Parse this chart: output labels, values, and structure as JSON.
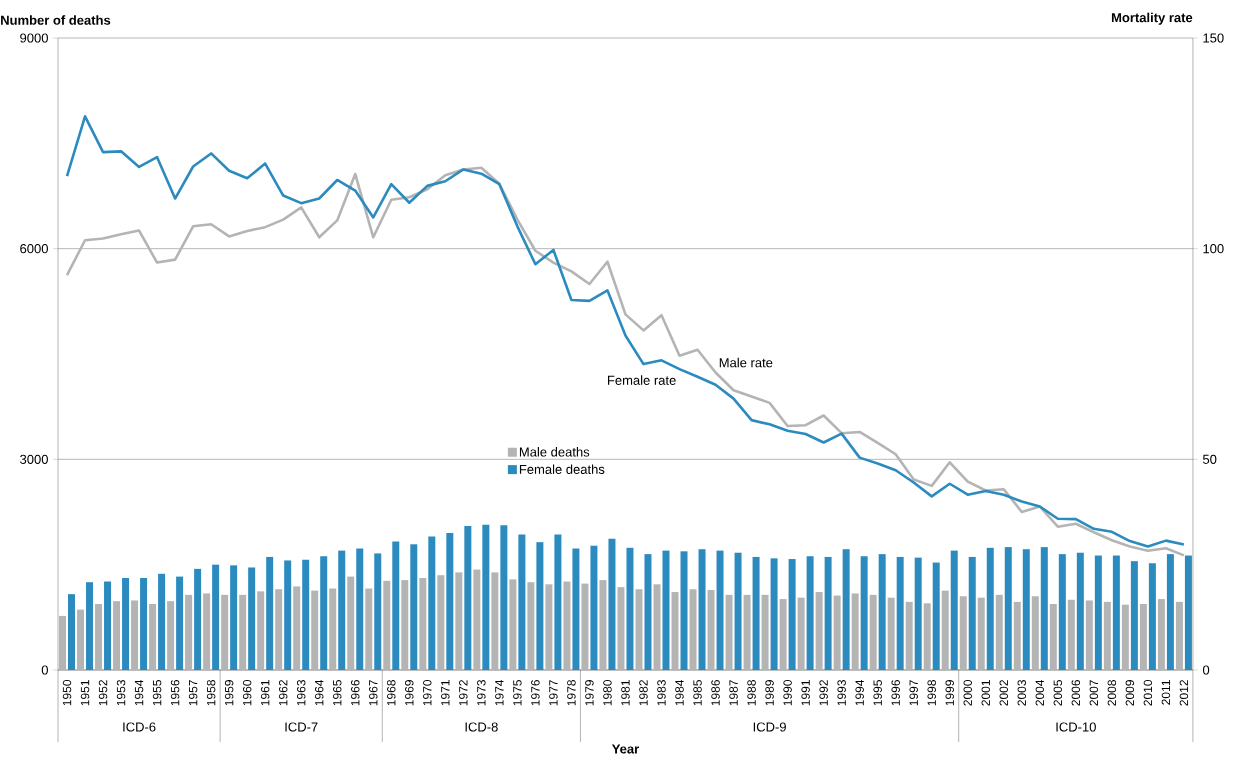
{
  "chart_data": {
    "type": "bar",
    "xlabel": "Year",
    "ylabel": "Number of deaths",
    "y2label": "Mortality rate",
    "categories": [
      "1950",
      "1951",
      "1952",
      "1953",
      "1954",
      "1955",
      "1956",
      "1957",
      "1958",
      "1959",
      "1960",
      "1961",
      "1962",
      "1963",
      "1964",
      "1965",
      "1966",
      "1967",
      "1968",
      "1969",
      "1970",
      "1971",
      "1972",
      "1973",
      "1974",
      "1975",
      "1976",
      "1977",
      "1978",
      "1979",
      "1980",
      "1981",
      "1982",
      "1983",
      "1984",
      "1985",
      "1986",
      "1987",
      "1988",
      "1989",
      "1990",
      "1991",
      "1992",
      "1993",
      "1994",
      "1995",
      "1996",
      "1997",
      "1998",
      "1999",
      "2000",
      "2001",
      "2002",
      "2003",
      "2004",
      "2005",
      "2006",
      "2007",
      "2008",
      "2009",
      "2010",
      "2011",
      "2012"
    ],
    "series": [
      {
        "name": "Male deaths",
        "color": "#b4b4b4",
        "values": [
          770,
          860,
          940,
          980,
          990,
          940,
          980,
          1070,
          1090,
          1070,
          1070,
          1120,
          1150,
          1190,
          1130,
          1160,
          1330,
          1160,
          1270,
          1280,
          1310,
          1350,
          1390,
          1430,
          1390,
          1290,
          1250,
          1220,
          1260,
          1230,
          1280,
          1180,
          1150,
          1220,
          1110,
          1150,
          1140,
          1070,
          1070,
          1070,
          1010,
          1030,
          1110,
          1060,
          1090,
          1070,
          1030,
          970,
          950,
          1130,
          1050,
          1030,
          1070,
          970,
          1050,
          940,
          1000,
          990,
          970,
          930,
          940,
          1010,
          970
        ]
      },
      {
        "name": "Female deaths",
        "color": "#2b8bbf",
        "values": [
          1080,
          1250,
          1260,
          1310,
          1310,
          1370,
          1330,
          1440,
          1500,
          1490,
          1460,
          1610,
          1560,
          1570,
          1620,
          1700,
          1730,
          1660,
          1830,
          1790,
          1900,
          1950,
          2050,
          2070,
          2060,
          1930,
          1820,
          1930,
          1730,
          1770,
          1870,
          1740,
          1650,
          1700,
          1690,
          1720,
          1700,
          1670,
          1610,
          1590,
          1580,
          1620,
          1610,
          1720,
          1620,
          1650,
          1610,
          1600,
          1530,
          1700,
          1610,
          1740,
          1750,
          1720,
          1750,
          1650,
          1670,
          1630,
          1630,
          1550,
          1520,
          1650,
          1630
        ]
      },
      {
        "name": "Male rate",
        "type": "line",
        "axis": "y2",
        "color": "#b4b4b4",
        "values": [
          93.7,
          102.0,
          102.4,
          103.4,
          104.3,
          96.7,
          97.4,
          105.3,
          105.8,
          102.9,
          104.2,
          105.1,
          106.9,
          109.8,
          102.7,
          106.7,
          117.7,
          102.7,
          111.6,
          112.2,
          114.1,
          117.4,
          118.8,
          119.2,
          115.4,
          106.9,
          99.5,
          96.7,
          94.6,
          91.6,
          96.9,
          84.4,
          80.6,
          84.2,
          74.6,
          76.0,
          70.6,
          66.4,
          64.9,
          63.4,
          57.9,
          58.1,
          60.4,
          56.2,
          56.5,
          53.9,
          51.2,
          45.2,
          43.7,
          49.3,
          44.7,
          42.6,
          42.9,
          37.5,
          38.8,
          34.0,
          34.7,
          32.7,
          30.8,
          29.3,
          28.3,
          28.9,
          27.2
        ]
      },
      {
        "name": "Female rate",
        "type": "line",
        "axis": "y2",
        "color": "#2b8bbf",
        "values": [
          117.2,
          131.4,
          122.9,
          123.1,
          119.4,
          121.7,
          111.9,
          119.5,
          122.6,
          118.5,
          116.7,
          120.2,
          112.6,
          110.8,
          111.9,
          116.3,
          113.8,
          107.4,
          115.3,
          110.9,
          114.9,
          116.0,
          118.8,
          117.8,
          115.3,
          105.3,
          96.3,
          99.7,
          87.8,
          87.6,
          90.1,
          79.4,
          72.6,
          73.5,
          71.4,
          69.6,
          67.7,
          64.4,
          59.3,
          58.3,
          56.8,
          56.0,
          54.0,
          56.1,
          50.4,
          49.0,
          47.4,
          44.5,
          41.2,
          44.2,
          41.6,
          42.5,
          41.6,
          40.0,
          38.8,
          35.9,
          35.8,
          33.5,
          32.8,
          30.6,
          29.3,
          30.7,
          29.8
        ]
      }
    ],
    "ylim": [
      0,
      9000
    ],
    "yticks": [
      0,
      3000,
      6000,
      9000
    ],
    "y2lim": [
      0,
      150
    ],
    "y2ticks": [
      0,
      50,
      100,
      150
    ],
    "grid": "y",
    "legend": "center",
    "annotations": [
      "ICD-6",
      "ICD-7",
      "ICD-8",
      "ICD-9",
      "ICD-10"
    ]
  }
}
